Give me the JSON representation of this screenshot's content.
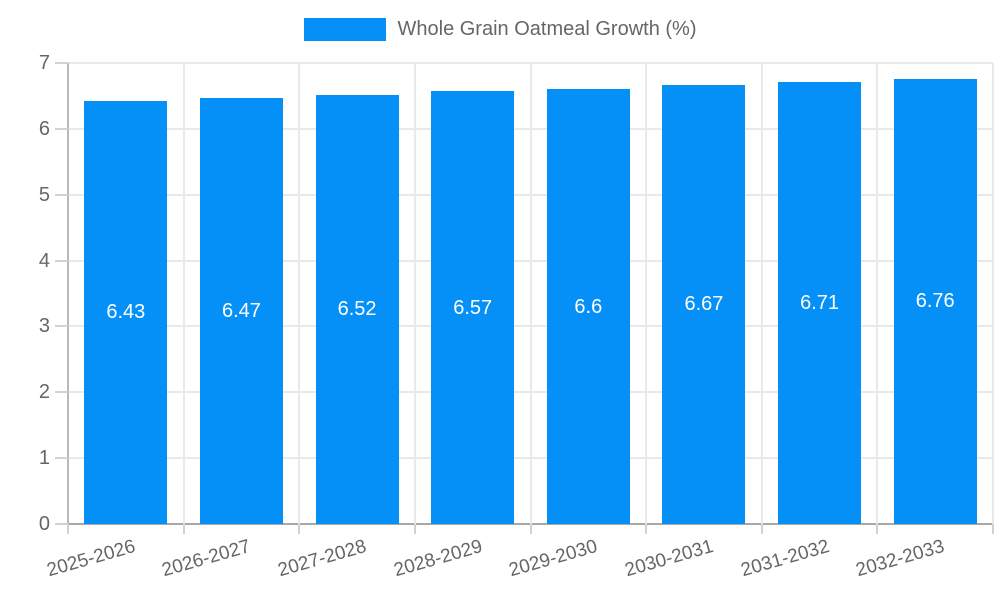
{
  "chart_data": {
    "type": "bar",
    "legend_label": "Whole Grain Oatmeal Growth (%)",
    "legend_position": "top",
    "categories": [
      "2025-2026",
      "2026-2027",
      "2027-2028",
      "2028-2029",
      "2029-2030",
      "2030-2031",
      "2031-2032",
      "2032-2033"
    ],
    "values": [
      6.43,
      6.47,
      6.52,
      6.57,
      6.6,
      6.67,
      6.71,
      6.76
    ],
    "value_labels": [
      "6.43",
      "6.47",
      "6.52",
      "6.57",
      "6.6",
      "6.67",
      "6.71",
      "6.76"
    ],
    "xlabel": "",
    "ylabel": "",
    "ylim": [
      0,
      7
    ],
    "ytick_labels": [
      "0",
      "1",
      "2",
      "3",
      "4",
      "5",
      "6",
      "7"
    ],
    "grid": true,
    "colors": {
      "bar": "#0590f8",
      "grid": "#e9e9e9",
      "axis_line": "#a8a8a8",
      "tick_mark": "#d2d2d2",
      "axis_text": "#666666",
      "value_text": "#ffffff",
      "background": "#ffffff"
    }
  }
}
